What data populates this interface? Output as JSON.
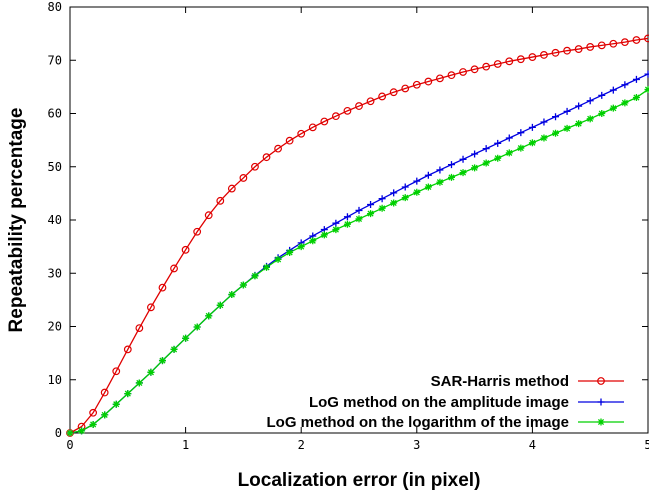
{
  "chart_data": {
    "type": "line",
    "title": "",
    "xlabel": "Localization error (in pixel)",
    "ylabel": "Repeatability percentage",
    "xlim": [
      0,
      5
    ],
    "ylim": [
      0,
      80
    ],
    "xticks": [
      "0",
      "1",
      "2",
      "3",
      "4",
      "5"
    ],
    "yticks": [
      "0",
      "10",
      "20",
      "30",
      "40",
      "50",
      "60",
      "70",
      "80"
    ],
    "grid": false,
    "legend_position": "bottom-right",
    "series": [
      {
        "name": "SAR-Harris method",
        "color": "#e00000",
        "marker": "circle",
        "x": [
          0,
          0.1,
          0.2,
          0.3,
          0.4,
          0.5,
          0.6,
          0.7,
          0.8,
          0.9,
          1.0,
          1.1,
          1.2,
          1.3,
          1.4,
          1.5,
          1.6,
          1.7,
          1.8,
          1.9,
          2.0,
          2.1,
          2.2,
          2.3,
          2.4,
          2.5,
          2.6,
          2.7,
          2.8,
          2.9,
          3.0,
          3.1,
          3.2,
          3.3,
          3.4,
          3.5,
          3.6,
          3.7,
          3.8,
          3.9,
          4.0,
          4.1,
          4.2,
          4.3,
          4.4,
          4.5,
          4.6,
          4.7,
          4.8,
          4.9,
          5.0
        ],
        "y": [
          0,
          1.2,
          3.8,
          7.6,
          11.6,
          15.7,
          19.7,
          23.6,
          27.3,
          30.9,
          34.4,
          37.8,
          40.9,
          43.6,
          45.9,
          47.9,
          50.0,
          51.8,
          53.4,
          54.9,
          56.2,
          57.4,
          58.5,
          59.5,
          60.5,
          61.4,
          62.3,
          63.2,
          64.0,
          64.7,
          65.4,
          66.0,
          66.6,
          67.2,
          67.8,
          68.3,
          68.8,
          69.3,
          69.8,
          70.2,
          70.6,
          71.0,
          71.4,
          71.8,
          72.1,
          72.5,
          72.8,
          73.1,
          73.4,
          73.8,
          74.1
        ]
      },
      {
        "name": "LoG method on the amplitude image",
        "color": "#0000e0",
        "marker": "plus",
        "x": [
          0,
          0.1,
          0.2,
          0.3,
          0.4,
          0.5,
          0.6,
          0.7,
          0.8,
          0.9,
          1.0,
          1.1,
          1.2,
          1.3,
          1.4,
          1.5,
          1.6,
          1.7,
          1.8,
          1.9,
          2.0,
          2.1,
          2.2,
          2.3,
          2.4,
          2.5,
          2.6,
          2.7,
          2.8,
          2.9,
          3.0,
          3.1,
          3.2,
          3.3,
          3.4,
          3.5,
          3.6,
          3.7,
          3.8,
          3.9,
          4.0,
          4.1,
          4.2,
          4.3,
          4.4,
          4.5,
          4.6,
          4.7,
          4.8,
          4.9,
          5.0
        ],
        "y": [
          0,
          0.4,
          1.6,
          3.4,
          5.4,
          7.4,
          9.4,
          11.4,
          13.6,
          15.7,
          17.8,
          19.9,
          22.0,
          24.0,
          26.0,
          27.8,
          29.6,
          31.3,
          32.9,
          34.3,
          35.7,
          37.0,
          38.2,
          39.4,
          40.6,
          41.8,
          42.9,
          44.0,
          45.1,
          46.2,
          47.3,
          48.4,
          49.4,
          50.4,
          51.4,
          52.4,
          53.4,
          54.4,
          55.4,
          56.4,
          57.4,
          58.4,
          59.4,
          60.4,
          61.4,
          62.4,
          63.4,
          64.4,
          65.4,
          66.4,
          67.4
        ]
      },
      {
        "name": "LoG method on the logarithm of the image",
        "color": "#00d000",
        "marker": "star",
        "x": [
          0,
          0.1,
          0.2,
          0.3,
          0.4,
          0.5,
          0.6,
          0.7,
          0.8,
          0.9,
          1.0,
          1.1,
          1.2,
          1.3,
          1.4,
          1.5,
          1.6,
          1.7,
          1.8,
          1.9,
          2.0,
          2.1,
          2.2,
          2.3,
          2.4,
          2.5,
          2.6,
          2.7,
          2.8,
          2.9,
          3.0,
          3.1,
          3.2,
          3.3,
          3.4,
          3.5,
          3.6,
          3.7,
          3.8,
          3.9,
          4.0,
          4.1,
          4.2,
          4.3,
          4.4,
          4.5,
          4.6,
          4.7,
          4.8,
          4.9,
          5.0
        ],
        "y": [
          0,
          0.4,
          1.6,
          3.4,
          5.4,
          7.4,
          9.4,
          11.4,
          13.6,
          15.7,
          17.8,
          19.9,
          22.0,
          24.0,
          26.0,
          27.8,
          29.5,
          31.1,
          32.6,
          33.9,
          35.0,
          36.1,
          37.2,
          38.2,
          39.2,
          40.2,
          41.2,
          42.2,
          43.2,
          44.2,
          45.2,
          46.2,
          47.1,
          48.0,
          48.9,
          49.8,
          50.7,
          51.6,
          52.6,
          53.5,
          54.5,
          55.4,
          56.3,
          57.2,
          58.1,
          59.0,
          60.0,
          61.0,
          62.0,
          63.0,
          64.5
        ]
      }
    ]
  }
}
